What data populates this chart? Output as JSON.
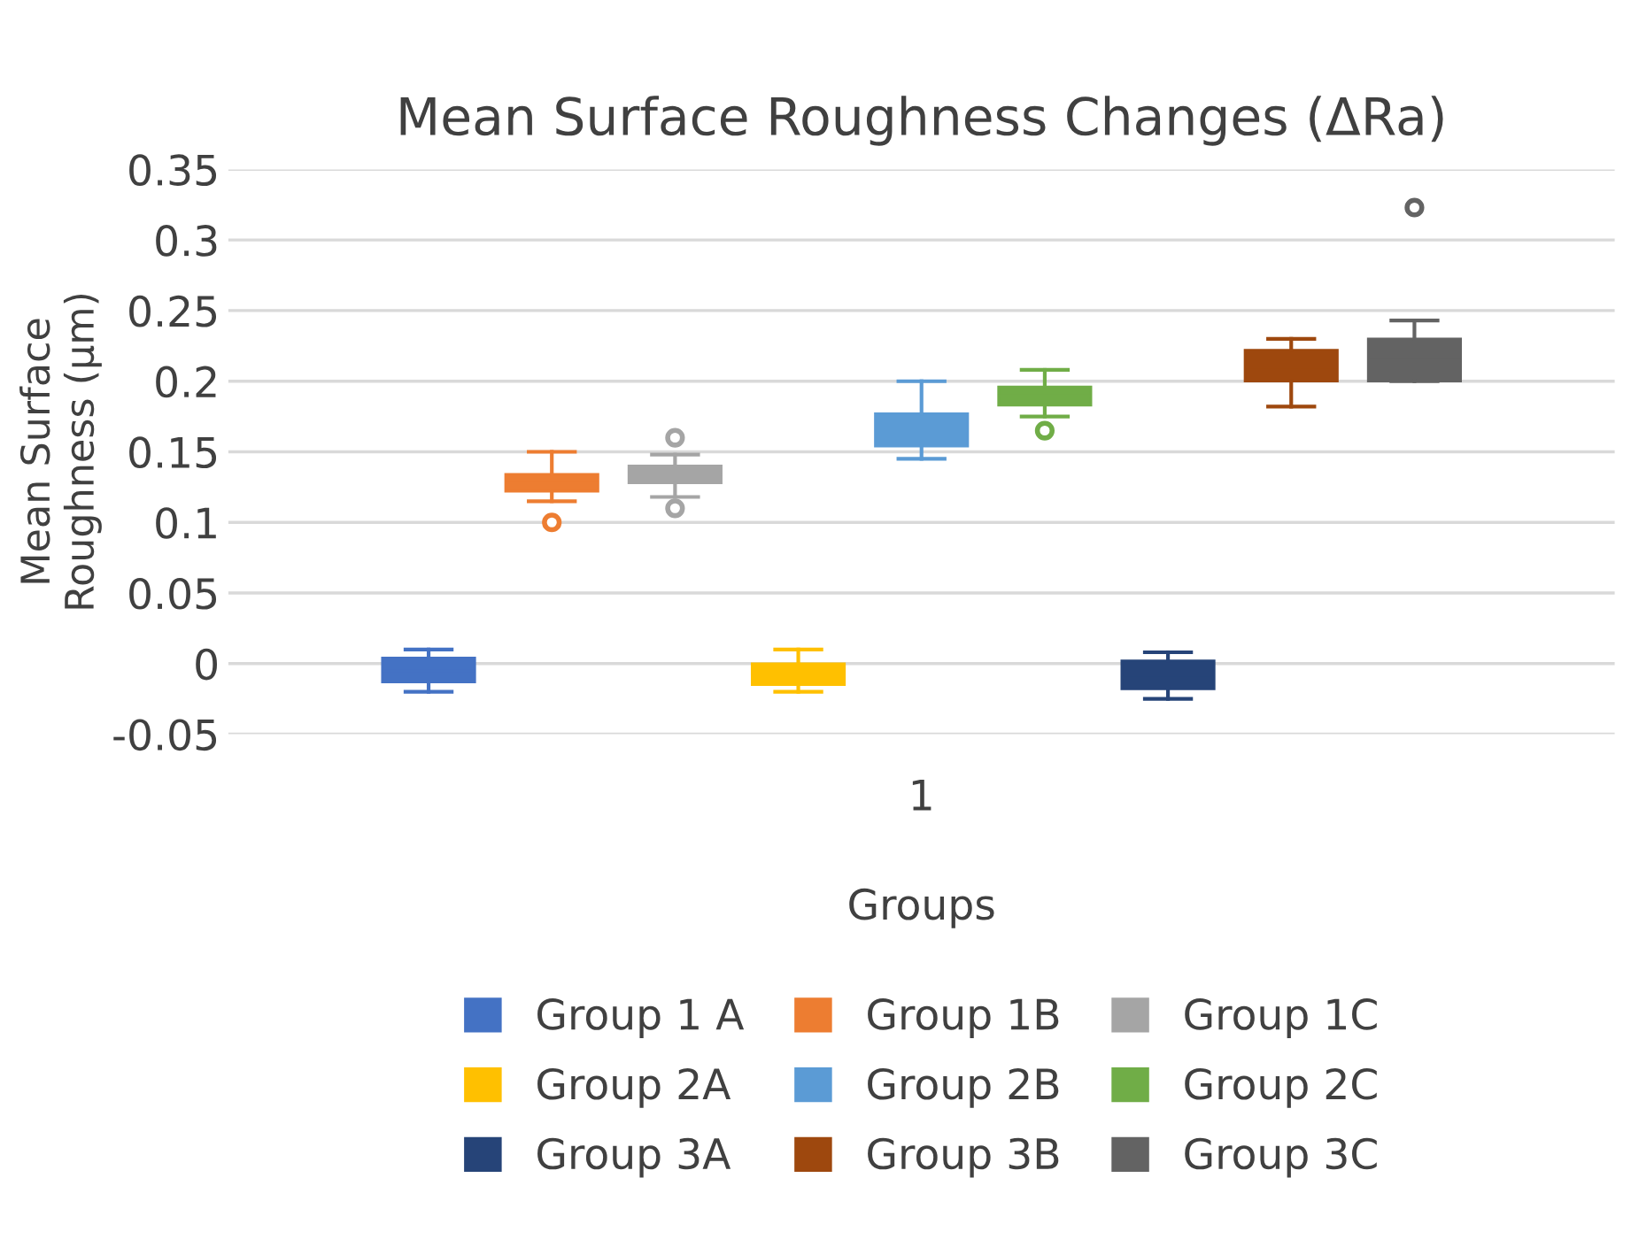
{
  "chart_data": {
    "type": "box",
    "title": "Mean Surface Roughness Changes (ΔRa)",
    "xlabel": "Groups",
    "ylabel": "Mean Surface\nRoughness (µm)",
    "categories": [
      "1"
    ],
    "series": [
      {
        "name": "Group 1 A",
        "color": "#4472c4",
        "boxes": [
          {
            "low": -0.02,
            "q1": -0.013,
            "median": -0.005,
            "q3": 0.004,
            "high": 0.01
          }
        ]
      },
      {
        "name": "Group 1B",
        "color": "#ed7d31",
        "boxes": [
          {
            "low": 0.115,
            "q1": 0.122,
            "median": 0.128,
            "q3": 0.134,
            "high": 0.15,
            "outliers": [
              0.1
            ]
          }
        ]
      },
      {
        "name": "Group 1C",
        "color": "#a5a5a5",
        "boxes": [
          {
            "low": 0.118,
            "q1": 0.128,
            "median": 0.134,
            "q3": 0.14,
            "high": 0.148,
            "outliers": [
              0.16,
              0.11
            ]
          }
        ]
      },
      {
        "name": "Group 2A",
        "color": "#ffc000",
        "boxes": [
          {
            "low": -0.02,
            "q1": -0.015,
            "median": -0.007,
            "q3": 0.0,
            "high": 0.01
          }
        ]
      },
      {
        "name": "Group 2B",
        "color": "#5b9bd5",
        "boxes": [
          {
            "low": 0.145,
            "q1": 0.154,
            "median": 0.165,
            "q3": 0.177,
            "high": 0.2
          }
        ]
      },
      {
        "name": "Group 2C",
        "color": "#70ad47",
        "boxes": [
          {
            "low": 0.175,
            "q1": 0.183,
            "median": 0.19,
            "q3": 0.196,
            "high": 0.208,
            "outliers": [
              0.165
            ]
          }
        ]
      },
      {
        "name": "Group 3A",
        "color": "#264478",
        "boxes": [
          {
            "low": -0.025,
            "q1": -0.018,
            "median": -0.01,
            "q3": 0.002,
            "high": 0.008
          }
        ]
      },
      {
        "name": "Group 3B",
        "color": "#9e480e",
        "boxes": [
          {
            "low": 0.182,
            "q1": 0.2,
            "median": 0.21,
            "q3": 0.222,
            "high": 0.23
          }
        ]
      },
      {
        "name": "Group 3C",
        "color": "#636363",
        "boxes": [
          {
            "low": 0.2,
            "q1": 0.2,
            "median": 0.215,
            "q3": 0.23,
            "high": 0.243,
            "outliers": [
              0.323
            ]
          }
        ]
      }
    ],
    "ylim": [
      -0.05,
      0.35
    ],
    "yticks": [
      {
        "value": -0.05,
        "label": "-0.05"
      },
      0,
      0.05,
      0.1,
      0.15,
      0.2,
      0.25,
      0.3,
      0.35
    ],
    "grid": "y",
    "legend": "bottom"
  }
}
